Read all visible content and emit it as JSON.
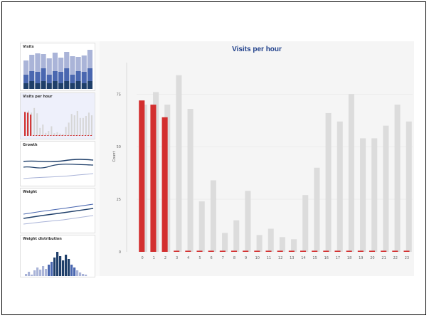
{
  "sidebar": {
    "items": [
      {
        "label": "Visits"
      },
      {
        "label": "Visits per hour"
      },
      {
        "label": "Growth"
      },
      {
        "label": "Weight"
      },
      {
        "label": "Weight distribution"
      }
    ]
  },
  "colors": {
    "accent": "#d32f2f",
    "gray_bar": "#dcdcdc",
    "title": "#1f3f8a",
    "navy": "#1f3f6a",
    "mid_blue": "#4a67b0",
    "light_blue": "#aab4d8"
  },
  "chart_data": {
    "type": "bar",
    "title": "Visits per hour",
    "xlabel": "",
    "ylabel": "Count",
    "ylim": [
      0,
      90
    ],
    "yticks": [
      0,
      25,
      50,
      75
    ],
    "grid": true,
    "categories": [
      "0",
      "1",
      "2",
      "3",
      "4",
      "5",
      "6",
      "7",
      "8",
      "9",
      "10",
      "11",
      "12",
      "13",
      "14",
      "15",
      "16",
      "17",
      "18",
      "19",
      "20",
      "21",
      "22",
      "23"
    ],
    "series": [
      {
        "values": [
          70,
          76,
          70,
          84,
          68,
          24,
          34,
          9,
          15,
          29,
          8,
          11,
          7,
          6,
          27,
          40,
          66,
          62,
          75,
          54,
          54,
          60,
          70,
          62
        ]
      },
      {
        "values": [
          72,
          70,
          64,
          0,
          0,
          0,
          0,
          0,
          0,
          0,
          0,
          0,
          0,
          0,
          0,
          0,
          0,
          0,
          0,
          0,
          0,
          0,
          0,
          0
        ]
      }
    ]
  }
}
